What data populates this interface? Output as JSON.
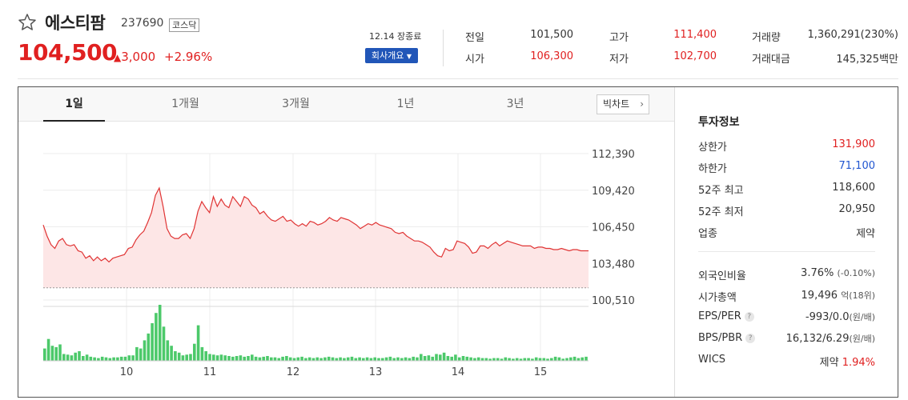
{
  "header": {
    "star_icon": "star-outline-icon",
    "name": "에스티팜",
    "code": "237690",
    "market": "코스닥",
    "price": "104,500",
    "change": "3,000",
    "change_percent": "+2.96%",
    "date_status": "12.14 장종료",
    "company_button": "회사개요",
    "quotes": {
      "prev_label": "전일",
      "prev_value": "101,500",
      "high_label": "고가",
      "high_value": "111,400",
      "volume_label": "거래량",
      "volume_value": "1,360,291(230%)",
      "open_label": "시가",
      "open_value": "106,300",
      "low_label": "저가",
      "low_value": "102,700",
      "amount_label": "거래대금",
      "amount_value": "145,325백만"
    },
    "colors": {
      "up": "#e02020",
      "down": "#2156d0",
      "button": "#2156b8"
    }
  },
  "tabs": [
    "1일",
    "1개월",
    "3개월",
    "1년",
    "3년"
  ],
  "active_tab": "1일",
  "big_chart_label": "빅차트",
  "chart_data": {
    "type": "line",
    "x": [
      "10",
      "11",
      "12",
      "13",
      "14",
      "15"
    ],
    "ylim": [
      100510,
      112390
    ],
    "yticks": [
      "112,390",
      "109,420",
      "106,450",
      "103,480",
      "100,510"
    ],
    "baseline": 101500,
    "price_values": [
      106600,
      105700,
      105000,
      104700,
      105300,
      105500,
      105000,
      104900,
      105000,
      104500,
      104400,
      103900,
      104100,
      103700,
      104000,
      103700,
      103900,
      103600,
      103900,
      104000,
      104100,
      104200,
      104700,
      104800,
      105400,
      105800,
      106100,
      106800,
      107600,
      109000,
      109600,
      108100,
      106300,
      105700,
      105500,
      105500,
      105800,
      105900,
      105500,
      106300,
      107700,
      108500,
      108000,
      107600,
      108900,
      108100,
      108700,
      108200,
      108000,
      108900,
      108500,
      108100,
      108900,
      108700,
      108200,
      108000,
      107500,
      107700,
      107300,
      107000,
      106900,
      107100,
      107300,
      106900,
      107000,
      106700,
      106500,
      106700,
      106500,
      106900,
      106800,
      106600,
      106700,
      106900,
      107200,
      107000,
      106900,
      107200,
      107100,
      107000,
      106800,
      106600,
      106300,
      106500,
      106700,
      106600,
      106800,
      106600,
      106500,
      106400,
      106300,
      106000,
      105900,
      106000,
      105700,
      105500,
      105300,
      105300,
      105200,
      105000,
      104800,
      104400,
      104100,
      104000,
      104700,
      104500,
      104600,
      105300,
      105200,
      105100,
      104800,
      104300,
      104400,
      104900,
      104900,
      104700,
      105000,
      105200,
      104900,
      105100,
      105300,
      105200,
      105100,
      105000,
      104900,
      104900,
      104900,
      104700,
      104800,
      104800,
      104700,
      104700,
      104600,
      104600,
      104700,
      104600,
      104500,
      104600,
      104600,
      104500,
      104500,
      104500
    ],
    "volume_values": [
      18,
      32,
      22,
      20,
      24,
      10,
      9,
      8,
      12,
      14,
      7,
      9,
      6,
      5,
      4,
      6,
      5,
      4,
      5,
      5,
      6,
      6,
      8,
      8,
      20,
      18,
      30,
      40,
      55,
      70,
      82,
      50,
      30,
      22,
      14,
      12,
      8,
      9,
      10,
      25,
      52,
      20,
      14,
      10,
      9,
      8,
      9,
      8,
      7,
      6,
      7,
      8,
      6,
      7,
      9,
      6,
      5,
      6,
      7,
      5,
      5,
      4,
      6,
      7,
      5,
      4,
      5,
      6,
      4,
      5,
      4,
      5,
      4,
      5,
      6,
      5,
      4,
      5,
      4,
      5,
      6,
      4,
      5,
      4,
      5,
      4,
      5,
      4,
      4,
      5,
      6,
      4,
      5,
      4,
      5,
      4,
      6,
      5,
      10,
      7,
      8,
      6,
      10,
      9,
      12,
      7,
      6,
      9,
      5,
      7,
      6,
      5,
      4,
      5,
      4,
      4,
      3,
      4,
      4,
      3,
      5,
      4,
      3,
      4,
      3,
      4,
      4,
      3,
      5,
      4,
      4,
      3,
      4,
      6,
      5,
      3,
      4,
      5,
      6,
      4,
      5,
      6
    ]
  },
  "info": {
    "title": "투자정보",
    "rows": [
      {
        "label": "상한가",
        "value": "131,900"
      },
      {
        "label": "하한가",
        "value": "71,100"
      },
      {
        "label": "52주 최고",
        "value": "118,600"
      },
      {
        "label": "52주 최저",
        "value": "20,950"
      },
      {
        "label": "업종",
        "value": "제약"
      }
    ],
    "rows2": [
      {
        "label": "외국인비율",
        "value": "3.76%",
        "sub": "(-0.10%)"
      },
      {
        "label": "시가총액",
        "value": "19,496",
        "sub": "억(18위)"
      },
      {
        "label": "EPS/PER",
        "value": "-993/0.0",
        "sub": "(원/배)"
      },
      {
        "label": "BPS/PBR",
        "value": "16,132/6.29",
        "sub": "(원/배)"
      },
      {
        "label": "WICS",
        "value": "제약",
        "sub": "1.94%"
      }
    ]
  }
}
